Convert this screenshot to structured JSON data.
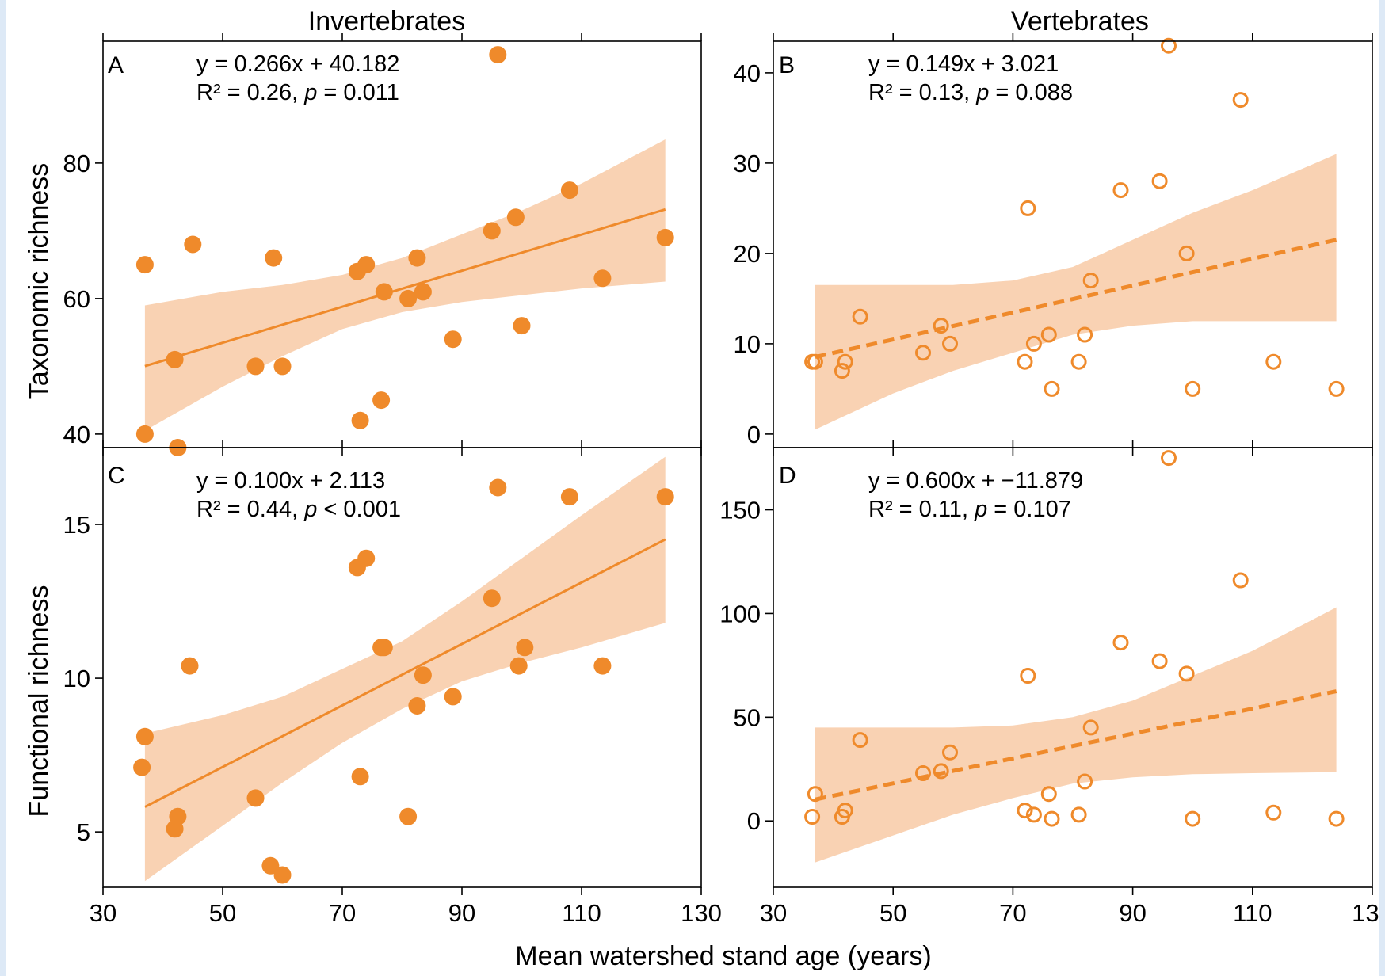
{
  "colors": {
    "accent": "#ef8a2b",
    "band": "#f9d2b3",
    "frame": "#dde9f6"
  },
  "columns": [
    "Invertebrates",
    "Vertebrates"
  ],
  "xlabel": "Mean watershed stand age (years)",
  "panels": [
    {
      "letter": "A",
      "eq": "y = 0.266x + 40.182",
      "r2_prefix": "R² = 0.26, ",
      "p_label": "p",
      "p_suffix": " = 0.011"
    },
    {
      "letter": "B",
      "eq": "y = 0.149x + 3.021",
      "r2_prefix": "R² = 0.13, ",
      "p_label": "p",
      "p_suffix": " = 0.088"
    },
    {
      "letter": "C",
      "eq": "y = 0.100x + 2.113",
      "r2_prefix": "R² = 0.44, ",
      "p_label": "p",
      "p_suffix": " < 0.001"
    },
    {
      "letter": "D",
      "eq": "y = 0.600x + −11.879",
      "r2_prefix": "R² = 0.11, ",
      "p_label": "p",
      "p_suffix": " = 0.107"
    }
  ],
  "chart_data": [
    {
      "type": "scatter",
      "panel": "A",
      "title": "Invertebrates",
      "ylabel": "Taxonomic richness",
      "xlabel": "Mean watershed stand age (years)",
      "xlim": [
        30,
        130
      ],
      "ylim": [
        38,
        98
      ],
      "xticks": [
        30,
        50,
        70,
        90,
        110,
        130
      ],
      "yticks": [
        40,
        60,
        80
      ],
      "marker": "filled",
      "fit": {
        "slope": 0.266,
        "intercept": 40.182,
        "x_range": [
          37,
          124
        ],
        "line_style": "solid"
      },
      "band": {
        "x": [
          37,
          50,
          60,
          70,
          80,
          90,
          100,
          110,
          124
        ],
        "lower": [
          40.5,
          47,
          51.5,
          55.5,
          58,
          59.5,
          60.5,
          61.5,
          62.5
        ],
        "upper": [
          59,
          61,
          62,
          63.5,
          66,
          69.5,
          73,
          77,
          83.5
        ]
      },
      "x": [
        37,
        37,
        42,
        42.5,
        45,
        55.5,
        58.5,
        60,
        72.5,
        73,
        74,
        76.5,
        77,
        81,
        82.5,
        83.5,
        88.5,
        95,
        96,
        99,
        100,
        108,
        113.5,
        124
      ],
      "y": [
        65,
        40,
        51,
        38,
        68,
        50,
        66,
        50,
        64,
        42,
        65,
        45,
        61,
        60,
        66,
        61,
        54,
        70,
        96,
        72,
        56,
        76,
        63,
        69
      ]
    },
    {
      "type": "scatter",
      "panel": "B",
      "title": "Vertebrates",
      "ylabel": "",
      "xlabel": "Mean watershed stand age (years)",
      "xlim": [
        30,
        130
      ],
      "ylim": [
        -1.5,
        43.5
      ],
      "xticks": [
        30,
        50,
        70,
        90,
        110,
        130
      ],
      "yticks": [
        0,
        10,
        20,
        30,
        40
      ],
      "marker": "open",
      "fit": {
        "slope": 0.149,
        "intercept": 3.021,
        "x_range": [
          37,
          124
        ],
        "line_style": "dashed"
      },
      "band": {
        "x": [
          37,
          50,
          60,
          70,
          80,
          90,
          100,
          110,
          124
        ],
        "lower": [
          0.5,
          4.5,
          7,
          9,
          11,
          12,
          12.5,
          12.5,
          12.5
        ],
        "upper": [
          16.5,
          16.5,
          16.5,
          17,
          18.5,
          21.5,
          24.5,
          27,
          31
        ]
      },
      "x": [
        36.5,
        37,
        41.5,
        42,
        44.5,
        55,
        58,
        59.5,
        72,
        72.5,
        73.5,
        76,
        76.5,
        81,
        82,
        83,
        88,
        94.5,
        96,
        99,
        100,
        108,
        113.5,
        124
      ],
      "y": [
        8,
        8,
        7,
        8,
        13,
        9,
        12,
        10,
        8,
        25,
        10,
        11,
        5,
        8,
        11,
        17,
        27,
        28,
        43,
        20,
        5,
        37,
        8,
        5
      ]
    },
    {
      "type": "scatter",
      "panel": "C",
      "title": "",
      "ylabel": "Functional richness",
      "xlabel": "Mean watershed stand age (years)",
      "xlim": [
        30,
        130
      ],
      "ylim": [
        3.2,
        17.5
      ],
      "xticks": [
        30,
        50,
        70,
        90,
        110,
        130
      ],
      "yticks": [
        5,
        10,
        15
      ],
      "marker": "filled",
      "fit": {
        "slope": 0.1,
        "intercept": 2.113,
        "x_range": [
          37,
          124
        ],
        "line_style": "solid"
      },
      "band": {
        "x": [
          37,
          50,
          60,
          70,
          80,
          90,
          100,
          110,
          124
        ],
        "lower": [
          3.4,
          5.2,
          6.6,
          7.9,
          9,
          9.9,
          10.5,
          11,
          11.8
        ],
        "upper": [
          8.2,
          8.8,
          9.4,
          10.3,
          11.2,
          12.5,
          13.9,
          15.3,
          17.2
        ]
      },
      "x": [
        36.5,
        37,
        42,
        42.5,
        44.5,
        55.5,
        58,
        60,
        72.5,
        73,
        74,
        76.5,
        77,
        81,
        82.5,
        83.5,
        88.5,
        95,
        96,
        99.5,
        100.5,
        108,
        113.5,
        124
      ],
      "y": [
        7.1,
        8.1,
        5.1,
        5.5,
        10.4,
        6.1,
        3.9,
        3.6,
        13.6,
        6.8,
        13.9,
        11,
        11,
        5.5,
        9.1,
        10.1,
        9.4,
        12.6,
        16.2,
        10.4,
        11,
        15.9,
        10.4,
        15.9
      ]
    },
    {
      "type": "scatter",
      "panel": "D",
      "title": "",
      "ylabel": "",
      "xlabel": "Mean watershed stand age (years)",
      "xlim": [
        30,
        130
      ],
      "ylim": [
        -32,
        180
      ],
      "xticks": [
        30,
        50,
        70,
        90,
        110,
        130
      ],
      "yticks": [
        0,
        50,
        100,
        150
      ],
      "marker": "open",
      "fit": {
        "slope": 0.6,
        "intercept": -11.879,
        "x_range": [
          37,
          124
        ],
        "line_style": "dashed"
      },
      "band": {
        "x": [
          37,
          50,
          60,
          70,
          80,
          90,
          100,
          110,
          124
        ],
        "lower": [
          -20,
          -7,
          3,
          11,
          18,
          21,
          22.5,
          23,
          23.5
        ],
        "upper": [
          45,
          45,
          45,
          46,
          50,
          58,
          70,
          82,
          103
        ]
      },
      "x": [
        36.5,
        37,
        41.5,
        42,
        44.5,
        55,
        58,
        59.5,
        72,
        72.5,
        73.5,
        76,
        76.5,
        81,
        82,
        83,
        88,
        94.5,
        96,
        99,
        100,
        108,
        113.5,
        124
      ],
      "y": [
        2,
        13,
        2,
        5,
        39,
        23,
        24,
        33,
        5,
        70,
        3,
        13,
        1,
        3,
        19,
        45,
        86,
        77,
        175,
        71,
        1,
        116,
        4,
        1
      ]
    }
  ]
}
